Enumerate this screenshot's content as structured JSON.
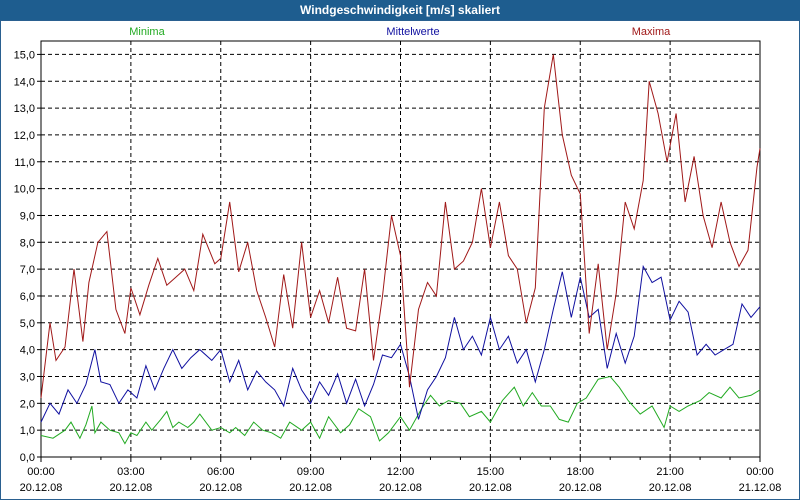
{
  "window": {
    "title": "Windgeschwindigkeit [m/s] skaliert"
  },
  "colors": {
    "min": "#22aa22",
    "mean": "#1010a0",
    "max": "#a01818",
    "titlebar": "#1e5d8f"
  },
  "chart_data": {
    "type": "line",
    "title": "Windgeschwindigkeit [m/s] skaliert",
    "xlabel": "",
    "ylabel": "",
    "ylim": [
      0,
      15.5
    ],
    "yticks": [
      "0,0",
      "1,0",
      "2,0",
      "3,0",
      "4,0",
      "5,0",
      "6,0",
      "7,0",
      "8,0",
      "9,0",
      "10,0",
      "11,0",
      "12,0",
      "13,0",
      "14,0",
      "15,0"
    ],
    "xticks": [
      {
        "time": "00:00",
        "date": "20.12.08"
      },
      {
        "time": "03:00",
        "date": "20.12.08"
      },
      {
        "time": "06:00",
        "date": "20.12.08"
      },
      {
        "time": "09:00",
        "date": "20.12.08"
      },
      {
        "time": "12:00",
        "date": "20.12.08"
      },
      {
        "time": "15:00",
        "date": "20.12.08"
      },
      {
        "time": "18:00",
        "date": "20.12.08"
      },
      {
        "time": "21:00",
        "date": "20.12.08"
      },
      {
        "time": "00:00",
        "date": "21.12.08"
      }
    ],
    "grid": true,
    "legend_position": "top",
    "series": [
      {
        "name": "Minima",
        "x": [
          0,
          0.4,
          0.8,
          1.0,
          1.3,
          1.5,
          1.7,
          1.8,
          2.0,
          2.3,
          2.6,
          2.8,
          3.0,
          3.2,
          3.5,
          3.7,
          4.0,
          4.2,
          4.4,
          4.6,
          4.9,
          5.1,
          5.3,
          5.7,
          6.0,
          6.3,
          6.5,
          6.8,
          7.1,
          7.4,
          7.7,
          8.0,
          8.3,
          8.7,
          9.0,
          9.3,
          9.6,
          10.0,
          10.3,
          10.6,
          11.0,
          11.3,
          11.6,
          12.0,
          12.3,
          12.7,
          13.0,
          13.3,
          13.6,
          14.0,
          14.3,
          14.7,
          15.0,
          15.4,
          15.8,
          16.1,
          16.4,
          16.7,
          17.0,
          17.3,
          17.6,
          17.9,
          18.2,
          18.6,
          19.0,
          19.3,
          19.6,
          20.0,
          20.4,
          20.8,
          21.0,
          21.3,
          21.6,
          22.0,
          22.3,
          22.7,
          23.0,
          23.3,
          23.7,
          24.0
        ],
        "values": [
          0.8,
          0.7,
          1.0,
          1.3,
          0.7,
          1.2,
          1.9,
          0.9,
          1.3,
          1.0,
          0.9,
          0.5,
          0.9,
          0.8,
          1.3,
          1.0,
          1.4,
          1.7,
          1.1,
          1.3,
          1.1,
          1.3,
          1.6,
          1.0,
          1.1,
          0.9,
          1.1,
          0.8,
          1.3,
          1.0,
          0.9,
          0.7,
          1.3,
          1.0,
          1.3,
          0.7,
          1.5,
          0.9,
          1.2,
          1.8,
          1.5,
          0.6,
          0.9,
          1.5,
          1.0,
          1.8,
          2.3,
          1.9,
          2.1,
          2.0,
          1.5,
          1.7,
          1.3,
          2.1,
          2.6,
          1.9,
          2.4,
          1.9,
          1.9,
          1.4,
          1.3,
          2.0,
          2.2,
          2.9,
          3.0,
          2.6,
          2.1,
          1.6,
          1.9,
          1.1,
          1.9,
          1.7,
          1.9,
          2.1,
          2.4,
          2.2,
          2.6,
          2.2,
          2.3,
          2.5
        ]
      },
      {
        "name": "Mittelwerte",
        "x": [
          0,
          0.3,
          0.6,
          0.9,
          1.2,
          1.5,
          1.8,
          2.0,
          2.3,
          2.6,
          2.9,
          3.2,
          3.5,
          3.8,
          4.1,
          4.4,
          4.7,
          5.0,
          5.3,
          5.7,
          6.0,
          6.3,
          6.6,
          6.9,
          7.2,
          7.5,
          7.8,
          8.1,
          8.4,
          8.7,
          9.0,
          9.3,
          9.6,
          9.9,
          10.2,
          10.5,
          10.8,
          11.1,
          11.4,
          11.7,
          12.0,
          12.3,
          12.6,
          12.9,
          13.2,
          13.5,
          13.8,
          14.1,
          14.4,
          14.7,
          15.0,
          15.3,
          15.6,
          15.9,
          16.2,
          16.5,
          16.8,
          17.1,
          17.4,
          17.7,
          18.0,
          18.3,
          18.6,
          18.9,
          19.2,
          19.5,
          19.8,
          20.1,
          20.4,
          20.7,
          21.0,
          21.3,
          21.6,
          21.9,
          22.2,
          22.5,
          22.8,
          23.1,
          23.4,
          23.7,
          24.0
        ],
        "values": [
          1.3,
          2.0,
          1.6,
          2.5,
          2.0,
          2.7,
          4.0,
          2.8,
          2.7,
          2.0,
          2.5,
          2.2,
          3.4,
          2.5,
          3.3,
          4.0,
          3.3,
          3.7,
          4.0,
          3.6,
          4.0,
          2.8,
          3.6,
          2.5,
          3.2,
          2.8,
          2.5,
          1.9,
          3.3,
          2.5,
          2.0,
          2.8,
          2.3,
          3.1,
          2.0,
          2.9,
          1.9,
          2.7,
          3.8,
          3.7,
          4.2,
          3.0,
          1.4,
          2.5,
          3.0,
          3.7,
          5.2,
          4.0,
          4.5,
          3.8,
          5.2,
          4.0,
          4.5,
          3.5,
          4.0,
          2.8,
          4.0,
          5.5,
          6.9,
          5.2,
          6.7,
          5.2,
          5.5,
          3.3,
          4.6,
          3.5,
          4.5,
          7.1,
          6.5,
          6.7,
          5.1,
          5.8,
          5.4,
          3.8,
          4.2,
          3.8,
          4.0,
          4.2,
          5.7,
          5.2,
          5.6
        ]
      },
      {
        "name": "Maxima",
        "x": [
          0,
          0.3,
          0.5,
          0.8,
          1.1,
          1.4,
          1.6,
          1.9,
          2.2,
          2.5,
          2.8,
          3.0,
          3.3,
          3.6,
          3.9,
          4.2,
          4.5,
          4.8,
          5.1,
          5.4,
          5.8,
          6.0,
          6.3,
          6.6,
          6.9,
          7.2,
          7.5,
          7.8,
          8.1,
          8.4,
          8.7,
          9.0,
          9.3,
          9.6,
          9.9,
          10.2,
          10.5,
          10.8,
          11.1,
          11.4,
          11.7,
          12.0,
          12.3,
          12.6,
          12.9,
          13.2,
          13.5,
          13.8,
          14.1,
          14.4,
          14.7,
          15.0,
          15.3,
          15.6,
          15.9,
          16.2,
          16.5,
          16.8,
          17.1,
          17.4,
          17.7,
          18.0,
          18.3,
          18.6,
          18.9,
          19.2,
          19.5,
          19.8,
          20.1,
          20.3,
          20.6,
          20.9,
          21.2,
          21.5,
          21.8,
          22.1,
          22.4,
          22.7,
          23.0,
          23.3,
          23.6,
          23.9,
          24.0
        ],
        "values": [
          2.2,
          5.0,
          3.6,
          4.1,
          7.0,
          4.3,
          6.5,
          8.0,
          8.4,
          5.5,
          4.6,
          6.3,
          5.3,
          6.4,
          7.4,
          6.4,
          6.7,
          7.0,
          6.2,
          8.3,
          7.2,
          7.4,
          9.5,
          6.9,
          8.0,
          6.2,
          5.2,
          4.1,
          6.8,
          4.8,
          8.0,
          5.2,
          6.2,
          5.0,
          6.7,
          4.8,
          4.7,
          7.0,
          3.6,
          6.0,
          9.0,
          7.5,
          2.6,
          5.5,
          6.5,
          6.0,
          9.5,
          7.0,
          7.3,
          8.0,
          10.0,
          7.8,
          9.5,
          7.5,
          7.0,
          5.0,
          6.3,
          13.0,
          15.0,
          12.0,
          10.5,
          9.8,
          4.6,
          7.2,
          4.0,
          6.1,
          9.5,
          8.5,
          10.3,
          14.0,
          12.8,
          11.0,
          12.8,
          9.5,
          11.2,
          9.0,
          7.8,
          9.5,
          8.0,
          7.1,
          7.7,
          10.8,
          11.5
        ]
      }
    ]
  }
}
